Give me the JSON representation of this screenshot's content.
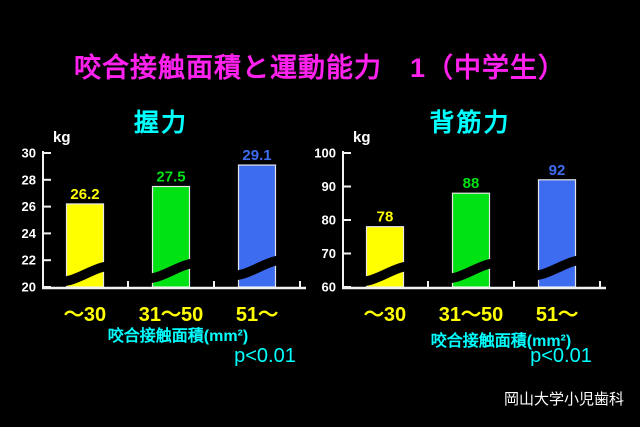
{
  "slide_title": "咬合接触面積と運動能力　1（中学生）",
  "footer": "岡山大学小児歯科",
  "colors": {
    "background": "#000000",
    "title_magenta": "#ff22ee",
    "accent_cyan": "#00ffff",
    "category_yellow": "#ffff00",
    "axis_white": "#f2f2f2",
    "bar_yellow": "#ffff00",
    "bar_green": "#00e214",
    "bar_blue": "#3e6cf1"
  },
  "chart_data": [
    {
      "type": "bar",
      "title": "握力",
      "unit_label": "kg",
      "xlabel": "咬合接触面積(mm²)",
      "categories": [
        "～30",
        "31～50",
        "51～"
      ],
      "values": [
        26.2,
        27.5,
        29.1
      ],
      "value_labels": [
        "26.2",
        "27.5",
        "29.1"
      ],
      "bar_colors": [
        "#ffff00",
        "#00e214",
        "#3e6cf1"
      ],
      "ylim": [
        20,
        30
      ],
      "yticks": [
        20,
        22,
        24,
        26,
        28,
        30
      ],
      "axis_break": true,
      "grid": false,
      "legend": "none",
      "annotation": "p<0.01"
    },
    {
      "type": "bar",
      "title": "背筋力",
      "unit_label": "kg",
      "xlabel": "咬合接触面積(mm²)",
      "categories": [
        "～30",
        "31～50",
        "51～"
      ],
      "values": [
        78,
        88,
        92
      ],
      "value_labels": [
        "78",
        "88",
        "92"
      ],
      "bar_colors": [
        "#ffff00",
        "#00e214",
        "#3e6cf1"
      ],
      "ylim": [
        60,
        100
      ],
      "yticks": [
        60,
        70,
        80,
        90,
        100
      ],
      "axis_break": true,
      "grid": false,
      "legend": "none",
      "annotation": "p<0.01"
    }
  ]
}
